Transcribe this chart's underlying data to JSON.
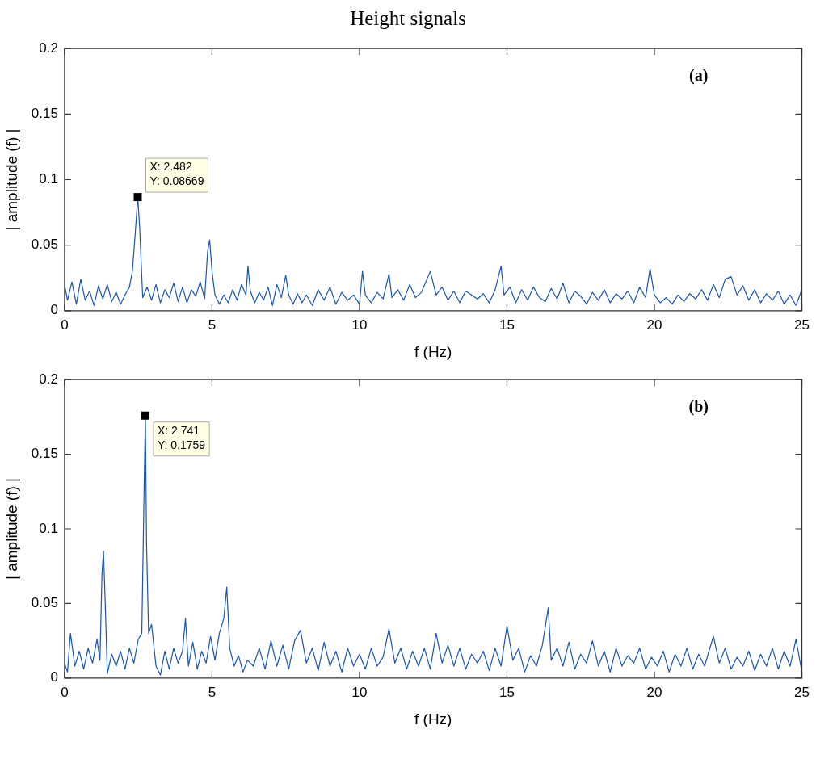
{
  "chart_data": [
    {
      "type": "line",
      "title": "Height signals",
      "xlabel": "f (Hz)",
      "ylabel": "| amplitude (f) |",
      "annotations": [
        "(a)",
        {
          "text": "X: 2.482\nY: 0.08669",
          "x": 2.482,
          "y": 0.08669
        }
      ],
      "xlim": [
        0,
        25
      ],
      "xticks": [
        0,
        5,
        10,
        15,
        20,
        25
      ],
      "ylim": [
        0,
        0.2
      ],
      "yticks": [
        0,
        0.05,
        0.1,
        0.15,
        0.2
      ],
      "series": [
        {
          "color": "#1a55b0",
          "x": [
            0,
            0.1,
            0.25,
            0.4,
            0.55,
            0.7,
            0.85,
            1.0,
            1.15,
            1.3,
            1.45,
            1.6,
            1.75,
            1.9,
            2.05,
            2.2,
            2.3,
            2.4,
            2.482,
            2.55,
            2.65,
            2.8,
            2.95,
            3.1,
            3.25,
            3.4,
            3.55,
            3.7,
            3.85,
            4.0,
            4.15,
            4.3,
            4.45,
            4.6,
            4.75,
            4.85,
            4.92,
            5.0,
            5.1,
            5.25,
            5.4,
            5.55,
            5.7,
            5.85,
            6.0,
            6.15,
            6.22,
            6.3,
            6.45,
            6.6,
            6.75,
            6.9,
            7.05,
            7.2,
            7.35,
            7.5,
            7.6,
            7.75,
            7.9,
            8.05,
            8.2,
            8.4,
            8.6,
            8.8,
            9.0,
            9.2,
            9.4,
            9.6,
            9.8,
            10.0,
            10.1,
            10.2,
            10.4,
            10.6,
            10.8,
            11.0,
            11.1,
            11.3,
            11.5,
            11.7,
            11.9,
            12.1,
            12.4,
            12.6,
            12.8,
            13.0,
            13.2,
            13.4,
            13.6,
            13.8,
            14.0,
            14.2,
            14.4,
            14.6,
            14.8,
            14.9,
            15.1,
            15.3,
            15.5,
            15.7,
            15.9,
            16.1,
            16.3,
            16.5,
            16.7,
            16.9,
            17.1,
            17.3,
            17.5,
            17.7,
            17.9,
            18.1,
            18.3,
            18.5,
            18.7,
            18.9,
            19.1,
            19.3,
            19.5,
            19.7,
            19.85,
            20.0,
            20.2,
            20.4,
            20.6,
            20.8,
            21.0,
            21.2,
            21.4,
            21.6,
            21.8,
            22.0,
            22.2,
            22.4,
            22.6,
            22.8,
            23.0,
            23.2,
            23.4,
            23.6,
            23.8,
            24.0,
            24.2,
            24.4,
            24.6,
            24.8,
            25.0
          ],
          "values": [
            0.02,
            0.008,
            0.022,
            0.005,
            0.024,
            0.008,
            0.015,
            0.004,
            0.019,
            0.009,
            0.02,
            0.007,
            0.014,
            0.005,
            0.012,
            0.018,
            0.03,
            0.06,
            0.08669,
            0.062,
            0.01,
            0.018,
            0.008,
            0.02,
            0.006,
            0.016,
            0.01,
            0.021,
            0.007,
            0.018,
            0.006,
            0.016,
            0.011,
            0.022,
            0.009,
            0.045,
            0.054,
            0.03,
            0.012,
            0.005,
            0.012,
            0.006,
            0.016,
            0.008,
            0.02,
            0.012,
            0.034,
            0.015,
            0.006,
            0.014,
            0.008,
            0.018,
            0.004,
            0.02,
            0.01,
            0.027,
            0.012,
            0.005,
            0.013,
            0.006,
            0.012,
            0.004,
            0.016,
            0.008,
            0.018,
            0.005,
            0.014,
            0.008,
            0.012,
            0.005,
            0.03,
            0.012,
            0.006,
            0.014,
            0.009,
            0.028,
            0.01,
            0.016,
            0.008,
            0.02,
            0.01,
            0.014,
            0.03,
            0.012,
            0.018,
            0.008,
            0.015,
            0.006,
            0.015,
            0.012,
            0.009,
            0.013,
            0.006,
            0.016,
            0.034,
            0.012,
            0.018,
            0.006,
            0.016,
            0.008,
            0.018,
            0.01,
            0.007,
            0.017,
            0.009,
            0.021,
            0.006,
            0.015,
            0.011,
            0.005,
            0.014,
            0.008,
            0.016,
            0.006,
            0.013,
            0.009,
            0.015,
            0.006,
            0.018,
            0.01,
            0.032,
            0.012,
            0.006,
            0.01,
            0.005,
            0.012,
            0.007,
            0.013,
            0.009,
            0.016,
            0.008,
            0.02,
            0.01,
            0.024,
            0.026,
            0.012,
            0.019,
            0.008,
            0.016,
            0.006,
            0.013,
            0.008,
            0.015,
            0.005,
            0.012,
            0.004,
            0.016
          ]
        }
      ]
    },
    {
      "type": "line",
      "xlabel": "f (Hz)",
      "ylabel": "| amplitude (f) |",
      "annotations": [
        "(b)",
        {
          "text": "X: 2.741\nY: 0.1759",
          "x": 2.741,
          "y": 0.1759
        }
      ],
      "xlim": [
        0,
        25
      ],
      "xticks": [
        0,
        5,
        10,
        15,
        20,
        25
      ],
      "ylim": [
        0,
        0.2
      ],
      "yticks": [
        0,
        0.05,
        0.1,
        0.15,
        0.2
      ],
      "series": [
        {
          "color": "#1a55b0",
          "x": [
            0,
            0.1,
            0.2,
            0.35,
            0.5,
            0.65,
            0.8,
            0.95,
            1.1,
            1.2,
            1.27,
            1.32,
            1.38,
            1.45,
            1.6,
            1.75,
            1.9,
            2.05,
            2.2,
            2.35,
            2.5,
            2.62,
            2.7,
            2.741,
            2.78,
            2.85,
            2.95,
            3.1,
            3.25,
            3.4,
            3.55,
            3.7,
            3.85,
            4.0,
            4.1,
            4.2,
            4.35,
            4.5,
            4.65,
            4.8,
            4.95,
            5.1,
            5.25,
            5.4,
            5.5,
            5.6,
            5.75,
            5.9,
            6.05,
            6.2,
            6.4,
            6.6,
            6.8,
            7.0,
            7.2,
            7.4,
            7.6,
            7.8,
            8.0,
            8.2,
            8.4,
            8.6,
            8.8,
            9.0,
            9.2,
            9.4,
            9.6,
            9.8,
            10.0,
            10.2,
            10.4,
            10.6,
            10.8,
            11.0,
            11.2,
            11.4,
            11.6,
            11.8,
            12.0,
            12.2,
            12.4,
            12.6,
            12.8,
            13.0,
            13.2,
            13.4,
            13.6,
            13.8,
            14.0,
            14.2,
            14.4,
            14.6,
            14.8,
            15.0,
            15.2,
            15.4,
            15.6,
            15.8,
            16.0,
            16.2,
            16.4,
            16.5,
            16.7,
            16.9,
            17.1,
            17.3,
            17.5,
            17.7,
            17.9,
            18.1,
            18.3,
            18.5,
            18.7,
            18.9,
            19.1,
            19.3,
            19.5,
            19.7,
            19.9,
            20.1,
            20.3,
            20.5,
            20.7,
            20.9,
            21.1,
            21.3,
            21.5,
            21.7,
            21.85,
            22.0,
            22.2,
            22.4,
            22.6,
            22.8,
            23.0,
            23.2,
            23.4,
            23.6,
            23.8,
            24.0,
            24.2,
            24.4,
            24.6,
            24.8,
            25.0
          ],
          "values": [
            0.01,
            0.004,
            0.03,
            0.008,
            0.018,
            0.006,
            0.02,
            0.01,
            0.026,
            0.012,
            0.07,
            0.085,
            0.05,
            0.003,
            0.016,
            0.008,
            0.018,
            0.006,
            0.02,
            0.01,
            0.026,
            0.03,
            0.13,
            0.1759,
            0.09,
            0.03,
            0.036,
            0.008,
            0.002,
            0.018,
            0.006,
            0.02,
            0.01,
            0.018,
            0.04,
            0.008,
            0.024,
            0.006,
            0.018,
            0.01,
            0.028,
            0.012,
            0.03,
            0.04,
            0.061,
            0.02,
            0.008,
            0.015,
            0.004,
            0.012,
            0.008,
            0.02,
            0.006,
            0.025,
            0.008,
            0.022,
            0.006,
            0.025,
            0.032,
            0.01,
            0.02,
            0.005,
            0.024,
            0.008,
            0.018,
            0.004,
            0.02,
            0.008,
            0.016,
            0.006,
            0.02,
            0.008,
            0.014,
            0.033,
            0.01,
            0.02,
            0.006,
            0.018,
            0.008,
            0.02,
            0.006,
            0.03,
            0.01,
            0.022,
            0.008,
            0.02,
            0.006,
            0.016,
            0.01,
            0.018,
            0.005,
            0.02,
            0.008,
            0.035,
            0.012,
            0.02,
            0.004,
            0.015,
            0.008,
            0.022,
            0.047,
            0.012,
            0.02,
            0.008,
            0.024,
            0.006,
            0.016,
            0.01,
            0.025,
            0.008,
            0.018,
            0.004,
            0.02,
            0.008,
            0.015,
            0.01,
            0.02,
            0.006,
            0.014,
            0.008,
            0.018,
            0.004,
            0.016,
            0.008,
            0.02,
            0.006,
            0.016,
            0.008,
            0.018,
            0.028,
            0.01,
            0.02,
            0.006,
            0.014,
            0.008,
            0.018,
            0.005,
            0.016,
            0.008,
            0.02,
            0.006,
            0.018,
            0.008,
            0.026,
            0.004
          ]
        }
      ]
    }
  ]
}
